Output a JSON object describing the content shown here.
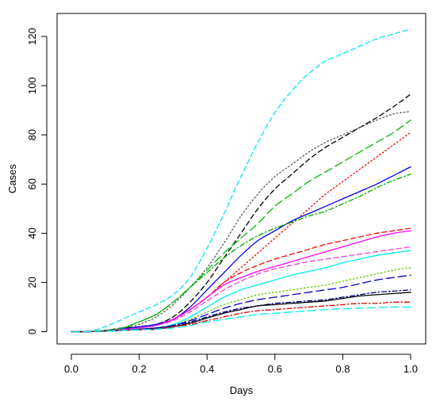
{
  "chart_data": {
    "type": "line",
    "title": "",
    "xlabel": "Days",
    "ylabel": "Cases",
    "xlim": [
      0,
      1
    ],
    "ylim": [
      0,
      125
    ],
    "xticks": [
      0.0,
      0.2,
      0.4,
      0.6,
      0.8,
      1.0
    ],
    "xtick_labels": [
      "0.0",
      "0.2",
      "0.4",
      "0.6",
      "0.8",
      "1.0"
    ],
    "yticks": [
      0,
      20,
      40,
      60,
      80,
      100,
      120
    ],
    "ytick_labels": [
      "0",
      "20",
      "40",
      "60",
      "80",
      "100",
      "120"
    ],
    "grid": false,
    "legend": "none",
    "x": [
      0,
      0.05,
      0.1,
      0.15,
      0.2,
      0.25,
      0.3,
      0.35,
      0.4,
      0.45,
      0.5,
      0.55,
      0.6,
      0.65,
      0.7,
      0.75,
      0.8,
      0.85,
      0.9,
      0.95,
      1.0
    ],
    "series": [
      {
        "color": "#00e5ee",
        "dash": "dashed",
        "values": [
          0,
          0,
          2,
          5,
          8,
          11,
          15,
          22,
          34,
          48,
          63,
          77,
          89,
          98,
          105,
          110,
          113,
          116,
          119,
          121,
          123
        ]
      },
      {
        "color": "#000000",
        "dash": "dashed",
        "values": [
          0,
          0,
          0.5,
          1.5,
          2,
          3,
          6,
          12,
          20,
          30,
          40,
          50,
          58,
          64,
          70,
          75,
          79,
          83,
          87,
          91.5,
          96.5
        ]
      },
      {
        "color": "#555555",
        "dash": "dotted",
        "values": [
          0,
          0,
          0.5,
          1.5,
          3,
          6,
          11,
          18,
          26,
          36,
          47,
          56,
          63,
          68,
          73,
          77,
          80,
          83,
          86,
          88.5,
          89.5
        ]
      },
      {
        "color": "#00bb00",
        "dash": "longdash",
        "values": [
          0,
          0,
          0.5,
          1.5,
          4,
          7,
          12,
          18,
          25,
          32,
          38,
          44,
          51,
          56,
          61,
          65,
          69,
          73,
          77,
          81,
          86
        ]
      },
      {
        "color": "#ff0000",
        "dash": "dotted",
        "values": [
          0,
          0,
          0.5,
          1,
          2,
          3,
          5,
          9,
          14,
          20,
          26,
          32,
          38,
          44,
          50,
          56,
          61,
          66,
          71,
          76,
          81
        ]
      },
      {
        "color": "#0000ee",
        "dash": "solid",
        "values": [
          0,
          0,
          0.3,
          1,
          2,
          3,
          5,
          10,
          17,
          24,
          31,
          37,
          41,
          45,
          48,
          51,
          54,
          57,
          60,
          63.5,
          67
        ]
      },
      {
        "color": "#00aa00",
        "dash": "dotdash",
        "values": [
          0,
          0,
          0.5,
          1.5,
          4,
          7,
          12,
          18,
          24,
          30,
          35,
          39,
          42,
          44.5,
          47,
          49,
          52,
          55,
          58.5,
          61.5,
          64
        ]
      },
      {
        "color": "#ff0000",
        "dash": "dashed",
        "values": [
          0,
          0,
          0.3,
          0.8,
          1.5,
          2.5,
          5,
          9,
          14,
          20,
          24,
          27,
          29.5,
          31.5,
          33.5,
          35.5,
          37,
          38.5,
          40,
          41,
          42
        ]
      },
      {
        "color": "#ff00ff",
        "dash": "solid",
        "values": [
          0,
          0,
          0.3,
          0.8,
          1.5,
          2.5,
          5,
          9,
          14,
          19,
          22,
          24.5,
          26.5,
          28.5,
          30.5,
          32.5,
          34.5,
          36.5,
          38.5,
          40,
          41
        ]
      },
      {
        "color": "#ee3fd4",
        "dash": "dashed",
        "values": [
          0,
          0,
          0.3,
          0.8,
          1.5,
          2.5,
          4.5,
          8,
          12.5,
          17,
          20.5,
          23.5,
          25.5,
          27,
          28.5,
          29.5,
          30.5,
          31.5,
          32.5,
          33.5,
          34.5
        ]
      },
      {
        "color": "#00eeee",
        "dash": "solid",
        "values": [
          0,
          0,
          0.2,
          0.5,
          1,
          1.5,
          3,
          6,
          10,
          14,
          17,
          19,
          21,
          23,
          24.5,
          26,
          28,
          29.5,
          31,
          32,
          33
        ]
      },
      {
        "color": "#55cc00",
        "dash": "dotted",
        "values": [
          0,
          0,
          0.2,
          0.5,
          1,
          1.5,
          2.5,
          5,
          8,
          11,
          13,
          15,
          16,
          17,
          18,
          19,
          20.5,
          22,
          23.5,
          25,
          26
        ]
      },
      {
        "color": "#0000cc",
        "dash": "longdash",
        "values": [
          0,
          0,
          0.2,
          0.5,
          1,
          1.5,
          2.5,
          4.5,
          7,
          9.5,
          11.5,
          13,
          14,
          15,
          16,
          17,
          18,
          19.5,
          21,
          22,
          23
        ]
      },
      {
        "color": "#00008b",
        "dash": "dotdash",
        "values": [
          0,
          0,
          0.2,
          0.5,
          1,
          1.5,
          2.5,
          4,
          6,
          8,
          9.5,
          10.5,
          11.5,
          12,
          12.5,
          13,
          14,
          15,
          16,
          16.5,
          17
        ]
      },
      {
        "color": "#000000",
        "dash": "solid",
        "values": [
          0,
          0,
          0.2,
          0.5,
          0.8,
          1,
          2,
          3.5,
          5.5,
          7.5,
          9,
          10.5,
          11,
          11.5,
          12,
          12.5,
          13.5,
          14.5,
          15,
          15.5,
          16
        ]
      },
      {
        "color": "#dd0000",
        "dash": "dotdash",
        "values": [
          0,
          0,
          0.2,
          0.5,
          0.8,
          1,
          2,
          3,
          4.5,
          6,
          7.5,
          8.5,
          9,
          9.5,
          10,
          10.5,
          11,
          11.5,
          11.5,
          12,
          12
        ]
      },
      {
        "color": "#00eeee",
        "dash": "longdash",
        "values": [
          0,
          0,
          0.2,
          0.5,
          0.8,
          1,
          1.5,
          2.5,
          4,
          5,
          6,
          7,
          7.5,
          8,
          8.5,
          9,
          9.3,
          9.5,
          9.8,
          10,
          10
        ]
      }
    ]
  }
}
